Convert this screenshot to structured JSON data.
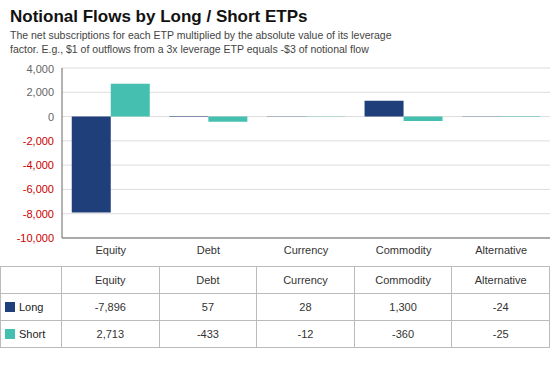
{
  "chart_data": {
    "type": "bar",
    "title": "Notional Flows by Long / Short ETPs",
    "subtitle": [
      "The net subscriptions for each ETP multiplied by the absolute value of its leverage",
      "factor. E.g., $1 of outflows from a 3x leverage ETP equals -$3 of notional flow"
    ],
    "categories": [
      "Equity",
      "Debt",
      "Currency",
      "Commodity",
      "Alternative"
    ],
    "series": [
      {
        "name": "Long",
        "color": "#1f3f7a",
        "values": [
          -7896,
          57,
          28,
          1300,
          -24
        ],
        "value_labels": [
          "-7,896",
          "57",
          "28",
          "1,300",
          "-24"
        ]
      },
      {
        "name": "Short",
        "color": "#45bfb0",
        "values": [
          2713,
          -433,
          -12,
          -360,
          -25
        ],
        "value_labels": [
          "2,713",
          "-433",
          "-12",
          "-360",
          "-25"
        ]
      }
    ],
    "ylim": [
      -10000,
      4000
    ],
    "yticks": [
      {
        "value": -10000,
        "label": "-10,000"
      },
      {
        "value": -8000,
        "label": "-8,000"
      },
      {
        "value": -6000,
        "label": "-6,000"
      },
      {
        "value": -4000,
        "label": "-4,000"
      },
      {
        "value": -2000,
        "label": "-2,000"
      },
      0,
      {
        "value": 2000,
        "label": "2,000"
      },
      {
        "value": 4000,
        "label": "4,000"
      }
    ],
    "grid": true
  }
}
